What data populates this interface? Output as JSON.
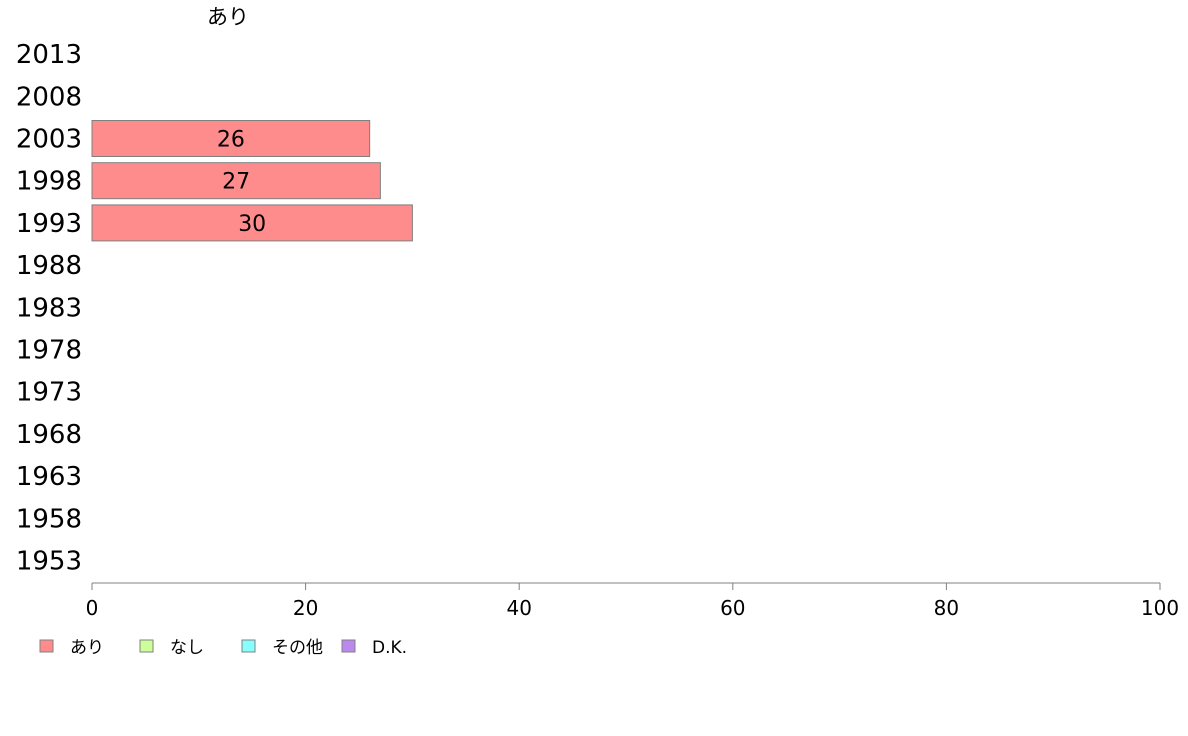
{
  "chart_data": {
    "type": "bar",
    "orientation": "horizontal",
    "stacked": true,
    "column_header": "あり",
    "categories": [
      "2013",
      "2008",
      "2003",
      "1998",
      "1993",
      "1988",
      "1983",
      "1978",
      "1973",
      "1968",
      "1963",
      "1958",
      "1953"
    ],
    "series": [
      {
        "name": "あり",
        "color": "#ff8c8c",
        "values": [
          null,
          null,
          26,
          27,
          30,
          null,
          null,
          null,
          null,
          null,
          null,
          null,
          null
        ]
      },
      {
        "name": "なし",
        "color": "#ccff99",
        "values": [
          null,
          null,
          null,
          null,
          null,
          null,
          null,
          null,
          null,
          null,
          null,
          null,
          null
        ]
      },
      {
        "name": "その他",
        "color": "#88ffff",
        "values": [
          null,
          null,
          null,
          null,
          null,
          null,
          null,
          null,
          null,
          null,
          null,
          null,
          null
        ]
      },
      {
        "name": "D.K.",
        "color": "#bb88ee",
        "values": [
          null,
          null,
          null,
          null,
          null,
          null,
          null,
          null,
          null,
          null,
          null,
          null,
          null
        ]
      }
    ],
    "xlim": [
      0,
      100
    ],
    "xticks": [
      0,
      20,
      40,
      60,
      80,
      100
    ],
    "legend_position": "bottom-left",
    "grid": false
  }
}
